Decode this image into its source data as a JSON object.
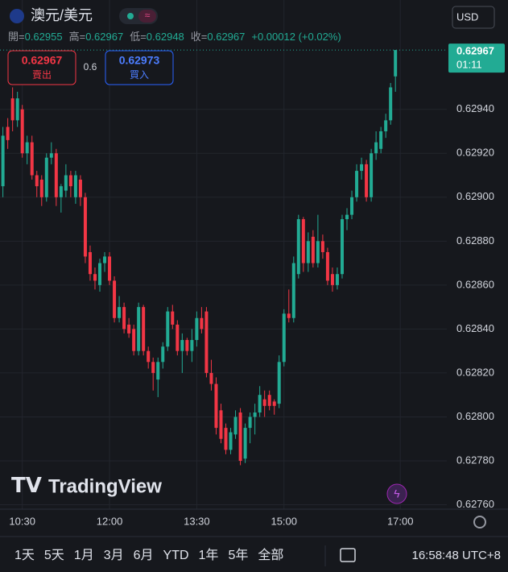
{
  "header": {
    "symbol": "澳元/美元",
    "currency": "USD",
    "open_label": "開=",
    "high_label": "高=",
    "low_label": "低=",
    "close_label": "收=",
    "change": "+0.00012 (+0.02%)",
    "sell_price": "0.62967",
    "sell_label": "賣出",
    "spread": "0.6",
    "buy_price": "0.62973",
    "buy_label": "買入",
    "countdown": "01:11",
    "logo": "TradingView"
  },
  "toolbar": {
    "ranges": [
      "1天",
      "5天",
      "1月",
      "3月",
      "6月",
      "YTD",
      "1年",
      "5年",
      "全部"
    ],
    "clock": "16:58:48 UTC+8"
  },
  "chart_data": {
    "type": "candlestick",
    "up_color": "#22ab94",
    "down_color": "#f23645",
    "grid": true,
    "x": [
      "10:10",
      "10:15",
      "10:20",
      "10:25",
      "10:30",
      "10:35",
      "10:40",
      "10:45",
      "10:50",
      "10:55",
      "11:00",
      "11:05",
      "11:10",
      "11:15",
      "11:20",
      "11:25",
      "11:30",
      "11:35",
      "11:40",
      "11:45",
      "11:50",
      "11:55",
      "12:00",
      "12:05",
      "12:10",
      "12:15",
      "12:20",
      "12:25",
      "12:30",
      "12:35",
      "12:40",
      "12:45",
      "12:50",
      "12:55",
      "13:00",
      "13:05",
      "13:10",
      "13:15",
      "13:20",
      "13:25",
      "13:30",
      "13:35",
      "13:40",
      "13:45",
      "13:50",
      "13:55",
      "14:00",
      "14:05",
      "14:10",
      "14:15",
      "14:20",
      "14:25",
      "14:30",
      "14:35",
      "14:40",
      "14:45",
      "14:50",
      "14:55",
      "15:00",
      "15:05",
      "15:10",
      "15:15",
      "15:20",
      "15:25",
      "15:30",
      "15:35",
      "15:40",
      "15:45",
      "15:50",
      "15:55",
      "16:00",
      "16:05",
      "16:10",
      "16:15",
      "16:20",
      "16:25",
      "16:30",
      "16:35",
      "16:40",
      "16:45",
      "16:50",
      "16:55"
    ],
    "open": [
      0.62905,
      0.62932,
      0.62945,
      0.62935,
      0.6294,
      0.6292,
      0.62925,
      0.6291,
      0.62908,
      0.629,
      0.62918,
      0.6292,
      0.629,
      0.62903,
      0.6291,
      0.629,
      0.62908,
      0.629,
      0.62875,
      0.62865,
      0.6286,
      0.6287,
      0.62873,
      0.62862,
      0.62845,
      0.6285,
      0.62842,
      0.6284,
      0.6283,
      0.6285,
      0.6283,
      0.62825,
      0.62817,
      0.62825,
      0.62832,
      0.62848,
      0.62842,
      0.6283,
      0.62835,
      0.6283,
      0.62835,
      0.62845,
      0.62848,
      0.6282,
      0.62815,
      0.62803,
      0.62795,
      0.62785,
      0.62792,
      0.62802,
      0.62781,
      0.62795,
      0.628,
      0.62802,
      0.62808,
      0.6281,
      0.62807,
      0.62806,
      0.62825,
      0.62847,
      0.62845,
      0.62865,
      0.6289,
      0.6287,
      0.62882,
      0.6287,
      0.6288,
      0.62875,
      0.62865,
      0.6286,
      0.62865,
      0.6289,
      0.62892,
      0.629,
      0.62912,
      0.62915,
      0.629,
      0.6292,
      0.62922,
      0.6293,
      0.62935,
      0.62955
    ],
    "high": [
      0.62932,
      0.62936,
      0.6295,
      0.62948,
      0.62942,
      0.62928,
      0.62928,
      0.62912,
      0.6291,
      0.6292,
      0.62925,
      0.62922,
      0.62906,
      0.62915,
      0.62912,
      0.62912,
      0.6291,
      0.62902,
      0.62878,
      0.62868,
      0.62872,
      0.62875,
      0.62875,
      0.62864,
      0.62855,
      0.62852,
      0.62845,
      0.62842,
      0.62852,
      0.62851,
      0.62832,
      0.62827,
      0.62827,
      0.62834,
      0.6285,
      0.62851,
      0.62844,
      0.62838,
      0.62836,
      0.6284,
      0.62848,
      0.6285,
      0.6285,
      0.62826,
      0.62818,
      0.62806,
      0.62797,
      0.62795,
      0.62803,
      0.62804,
      0.62797,
      0.62802,
      0.62806,
      0.62814,
      0.62812,
      0.62812,
      0.62808,
      0.62828,
      0.62849,
      0.62858,
      0.62873,
      0.62892,
      0.62891,
      0.62884,
      0.62885,
      0.62892,
      0.62883,
      0.62877,
      0.62868,
      0.62868,
      0.62892,
      0.62895,
      0.62903,
      0.62915,
      0.62918,
      0.62917,
      0.62922,
      0.6293,
      0.62932,
      0.62938,
      0.62952,
      0.62967
    ],
    "low": [
      0.629,
      0.62922,
      0.6293,
      0.62932,
      0.62918,
      0.62915,
      0.62908,
      0.629,
      0.62896,
      0.62898,
      0.62915,
      0.62896,
      0.62893,
      0.629,
      0.629,
      0.62897,
      0.62896,
      0.6287,
      0.62862,
      0.62858,
      0.62857,
      0.62866,
      0.6286,
      0.62843,
      0.62843,
      0.62838,
      0.62836,
      0.62828,
      0.62828,
      0.62828,
      0.62822,
      0.62812,
      0.62809,
      0.62822,
      0.6283,
      0.6284,
      0.62828,
      0.6282,
      0.62828,
      0.62825,
      0.62832,
      0.62838,
      0.62818,
      0.62812,
      0.62792,
      0.62788,
      0.62783,
      0.62783,
      0.6279,
      0.62778,
      0.62779,
      0.62788,
      0.62792,
      0.628,
      0.628,
      0.62803,
      0.62801,
      0.62804,
      0.62823,
      0.62843,
      0.62843,
      0.62863,
      0.62866,
      0.62866,
      0.62868,
      0.62868,
      0.62872,
      0.6286,
      0.62857,
      0.62858,
      0.62863,
      0.62885,
      0.6289,
      0.62898,
      0.62908,
      0.62898,
      0.62898,
      0.62917,
      0.6292,
      0.62927,
      0.62933,
      0.62948
    ],
    "close": [
      0.62928,
      0.62926,
      0.62935,
      0.62945,
      0.6292,
      0.62925,
      0.6291,
      0.62905,
      0.629,
      0.62918,
      0.6292,
      0.629,
      0.62905,
      0.6291,
      0.62905,
      0.6291,
      0.629,
      0.62873,
      0.62865,
      0.62862,
      0.6287,
      0.62873,
      0.62862,
      0.62845,
      0.6285,
      0.6284,
      0.62838,
      0.6283,
      0.6285,
      0.6283,
      0.62825,
      0.6282,
      0.62825,
      0.62832,
      0.62848,
      0.62842,
      0.6283,
      0.62835,
      0.6283,
      0.62835,
      0.62845,
      0.6284,
      0.6282,
      0.62815,
      0.62795,
      0.6279,
      0.62785,
      0.62793,
      0.628,
      0.6278,
      0.62795,
      0.628,
      0.62802,
      0.6281,
      0.62805,
      0.62805,
      0.62805,
      0.62825,
      0.62847,
      0.62845,
      0.6287,
      0.6289,
      0.6287,
      0.6288,
      0.6287,
      0.6288,
      0.62875,
      0.62862,
      0.6286,
      0.62865,
      0.6289,
      0.62892,
      0.629,
      0.62912,
      0.62915,
      0.629,
      0.6292,
      0.62925,
      0.6293,
      0.62935,
      0.6295,
      0.62967
    ],
    "xlim": [
      "10:07",
      "17:48"
    ],
    "xticks": [
      "10:30",
      "12:00",
      "13:30",
      "15:00",
      "17:00"
    ],
    "ylim": [
      0.62758,
      0.629685
    ],
    "yticks": [
      {
        "value": 0.6276,
        "label": "0.62760"
      },
      {
        "value": 0.6278,
        "label": "0.62780"
      },
      {
        "value": 0.628,
        "label": "0.62800"
      },
      {
        "value": 0.6282,
        "label": "0.62820"
      },
      {
        "value": 0.6284,
        "label": "0.62840"
      },
      {
        "value": 0.6286,
        "label": "0.62860"
      },
      {
        "value": 0.6288,
        "label": "0.62880"
      },
      {
        "value": 0.629,
        "label": "0.62900"
      },
      {
        "value": 0.6292,
        "label": "0.62920"
      },
      {
        "value": 0.6294,
        "label": "0.62940"
      }
    ]
  }
}
